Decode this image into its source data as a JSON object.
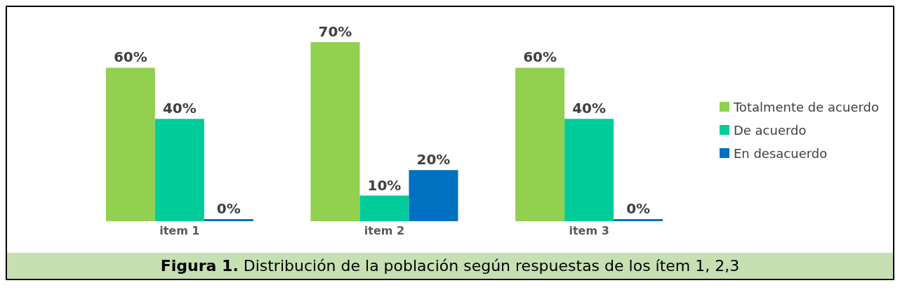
{
  "chart_data": {
    "type": "bar",
    "title": "Figura 1. Distribución de la población según respuestas de los ítem 1, 2,3",
    "categories": [
      "item 1",
      "item 2",
      "item 3"
    ],
    "series": [
      {
        "name": "Totalmente de acuerdo",
        "color": "#92d050",
        "values": [
          60,
          70,
          60
        ],
        "value_labels": [
          "60%",
          "70%",
          "60%"
        ]
      },
      {
        "name": "De acuerdo",
        "color": "#00cc99",
        "values": [
          40,
          10,
          40
        ],
        "value_labels": [
          "40%",
          "10%",
          "40%"
        ]
      },
      {
        "name": "En desacuerdo",
        "color": "#0070c0",
        "values": [
          0,
          20,
          0
        ],
        "value_labels": [
          "0%",
          "20%",
          "0%"
        ]
      }
    ],
    "legend": "right",
    "grid": false
  }
}
